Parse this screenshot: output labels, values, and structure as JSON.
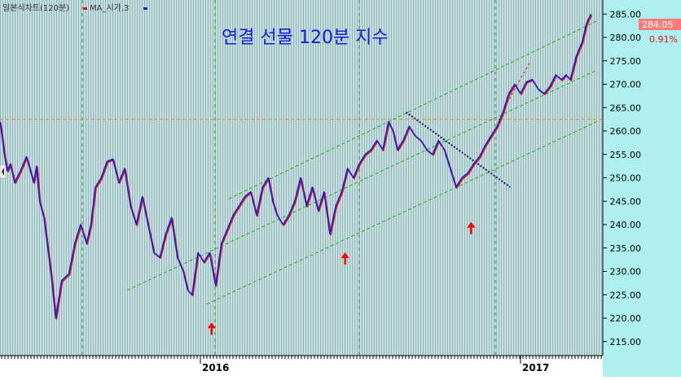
{
  "header": {
    "chart_label": "일본식차트(120분)",
    "ma_label": "MA_시가,3"
  },
  "chart_data": {
    "type": "line",
    "title": "연결 선물 120분 지수",
    "x_tick_labels": [
      "2016",
      "2017"
    ],
    "y_ticks": [
      215,
      220,
      225,
      230,
      235,
      240,
      245,
      250,
      255,
      260,
      265,
      270,
      275,
      280,
      285
    ],
    "ylim": [
      212,
      288
    ],
    "grid": "vertical dashed green lines at monthly boundaries",
    "last_price": "284.05",
    "change_pct": "0.91%",
    "horizontal_level": 262.5,
    "series": [
      {
        "name": "MA_시가,3",
        "color": "#1f1fd0",
        "shadow_color": "#e01010",
        "x_index": [
          0,
          2,
          3,
          5,
          7,
          10,
          14,
          18,
          23,
          25,
          27,
          30,
          33,
          35,
          38,
          42,
          47,
          51,
          55,
          59,
          62,
          65,
          69,
          73,
          77,
          81,
          85,
          89,
          93,
          97,
          101,
          105,
          109,
          113,
          117,
          121,
          125,
          128,
          131,
          135,
          139,
          143,
          147,
          151,
          155,
          159,
          163,
          167,
          171,
          175,
          179,
          183,
          186,
          189,
          193,
          197,
          201,
          205,
          209,
          213,
          217,
          221,
          225,
          229,
          233,
          237,
          241,
          245,
          249,
          253,
          257,
          261,
          265,
          268,
          271,
          275,
          279,
          283,
          287,
          291,
          295,
          299,
          303,
          307,
          311,
          315,
          319,
          323,
          327,
          331,
          335,
          339,
          343,
          347,
          351,
          355,
          359,
          363,
          367,
          371,
          375,
          379,
          383,
          386,
          389,
          393,
          397,
          400,
          403
        ],
        "values": [
          262.0,
          257.5,
          255.0,
          251.5,
          253.0,
          249.0,
          251.5,
          254.5,
          249.0,
          252.5,
          245.0,
          241.5,
          234.0,
          229.0,
          220.0,
          228.0,
          229.5,
          236.0,
          240.0,
          236.0,
          240.0,
          248.0,
          250.0,
          253.5,
          254.0,
          249.0,
          252.0,
          244.0,
          240.0,
          246.0,
          240.0,
          234.0,
          233.0,
          238.0,
          241.5,
          233.0,
          230.0,
          226.0,
          225.0,
          234.0,
          232.0,
          234.0,
          227.0,
          236.0,
          239.0,
          242.0,
          244.0,
          246.0,
          247.0,
          242.0,
          248.0,
          250.0,
          245.0,
          242.0,
          240.0,
          242.0,
          245.0,
          250.0,
          244.0,
          248.0,
          243.0,
          247.0,
          238.0,
          244.0,
          247.0,
          252.0,
          250.0,
          253.0,
          255.0,
          256.0,
          258.0,
          256.0,
          262.0,
          260.0,
          256.0,
          258.0,
          261.0,
          259.0,
          258.0,
          256.0,
          255.0,
          258.0,
          256.0,
          252.0,
          248.0,
          250.0,
          251.0,
          253.0,
          254.5,
          257.0,
          259.0,
          261.0,
          264.0,
          268.0,
          270.0,
          268.0,
          270.5,
          271.0,
          269.0,
          268.0,
          269.5,
          272.0,
          271.0,
          272.0,
          271.0,
          276.0,
          279.0,
          283.0,
          285.0
        ]
      }
    ],
    "annotations": [
      {
        "type": "up_arrow",
        "x_index": 141,
        "y": 221.5,
        "color": "#ff0000"
      },
      {
        "type": "up_arrow",
        "x_index": 232,
        "y": 236.5,
        "color": "#ff0000"
      },
      {
        "type": "up_arrow",
        "x_index": 318,
        "y": 243.0,
        "color": "#ff0000"
      }
    ],
    "channel": {
      "color": "#22aa22",
      "lower": [
        [
          141,
          223.0
        ],
        [
          407,
          262.0
        ]
      ],
      "middle": [
        [
          87,
          226.0
        ],
        [
          407,
          273.0
        ]
      ],
      "upper": [
        [
          156,
          245.5
        ],
        [
          407,
          283.5
        ]
      ]
    },
    "trendlines": [
      {
        "color": "#1a1a6a",
        "from": [
          277,
          264.0
        ],
        "to": [
          348,
          248.0
        ],
        "style": "dotted"
      },
      {
        "color": "#cc2233",
        "from": [
          344,
          265.0
        ],
        "to": [
          362,
          275.0
        ],
        "style": "dashed"
      }
    ]
  }
}
